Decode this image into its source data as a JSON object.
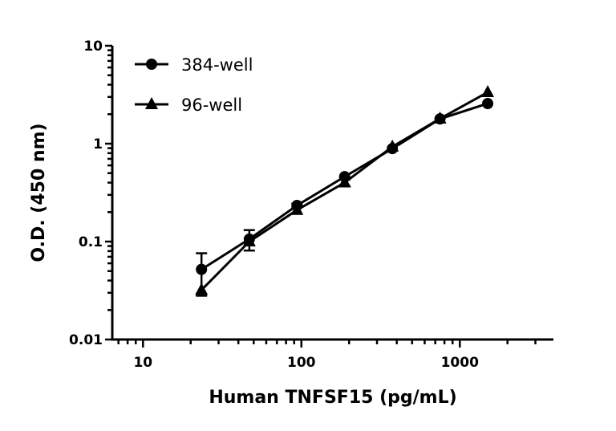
{
  "chart_data": {
    "type": "line",
    "xlabel": "Human TNFSF15 (pg/mL)",
    "ylabel": "O.D. (450 nm)",
    "xscale": "log",
    "yscale": "log",
    "xlim": [
      6.4,
      3900
    ],
    "ylim": [
      0.01,
      10
    ],
    "xticks": [
      {
        "value": 10,
        "label": "10"
      },
      {
        "value": 100,
        "label": "100"
      },
      {
        "value": 1000,
        "label": "1000"
      }
    ],
    "yticks": [
      {
        "value": 0.01,
        "label": "0.01"
      },
      {
        "value": 0.1,
        "label": "0.1"
      },
      {
        "value": 1,
        "label": "1"
      },
      {
        "value": 10,
        "label": "10"
      }
    ],
    "legend_position": "top-left",
    "grid": false,
    "x": [
      23.4,
      46.9,
      93.8,
      187.5,
      375,
      750,
      1500
    ],
    "series": [
      {
        "name": "384-well",
        "marker": "circle",
        "values": [
          0.052,
          0.106,
          0.234,
          0.46,
          0.89,
          1.79,
          2.57
        ],
        "error": [
          0.024,
          0.025,
          0.01,
          0,
          0,
          0,
          0
        ]
      },
      {
        "name": "96-well",
        "marker": "triangle",
        "values": [
          0.032,
          0.1,
          0.21,
          0.4,
          0.93,
          1.8,
          3.35
        ],
        "error": [
          0,
          0,
          0,
          0.03,
          0,
          0,
          0
        ]
      }
    ],
    "color": "#000000"
  }
}
